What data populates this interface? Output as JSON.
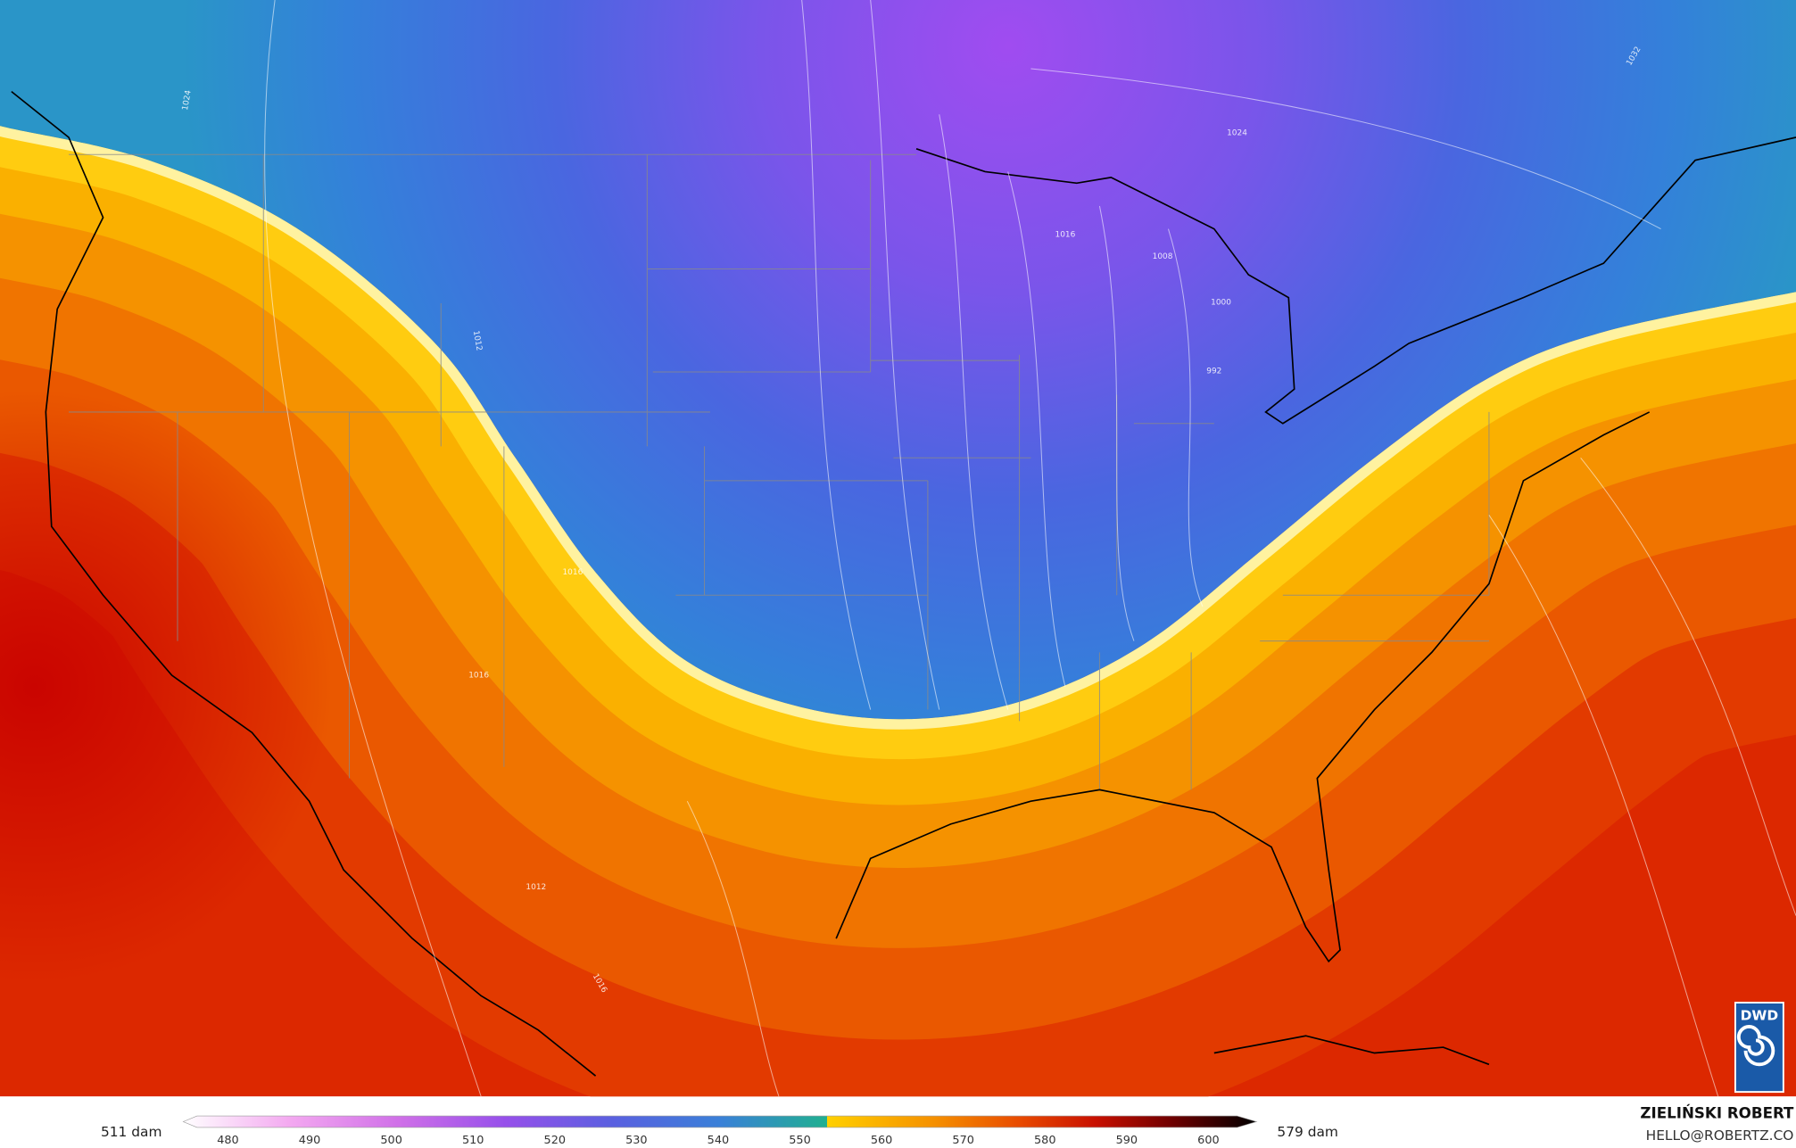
{
  "isobar_labels": [
    "1024",
    "1024",
    "1032",
    "1016",
    "1008",
    "1000",
    "992",
    "1012",
    "1016",
    "1016",
    "1012",
    "1016"
  ],
  "colorbar": {
    "ticks": [
      480,
      490,
      500,
      510,
      520,
      530,
      540,
      550,
      560,
      570,
      580,
      590,
      600
    ],
    "min_label": "511 dam",
    "max_label": "579 dam"
  },
  "credits": {
    "author": "ZIELIŃSKI ROBERT",
    "contact": "HELLO@ROBERTZ.CO"
  },
  "logo": "DWD"
}
